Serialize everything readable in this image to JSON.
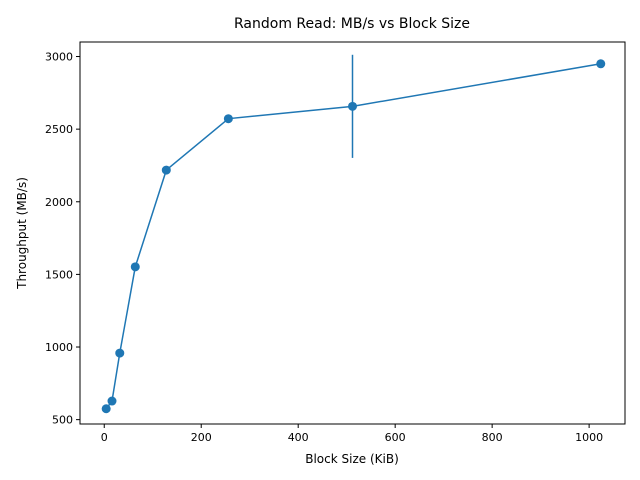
{
  "chart_data": {
    "type": "line",
    "title": "Random Read: MB/s vs Block Size",
    "xlabel": "Block Size (KiB)",
    "ylabel": "Throughput (MB/s)",
    "xlim": [
      -50,
      1074
    ],
    "ylim": [
      470,
      3100
    ],
    "x_ticks": [
      0,
      200,
      400,
      600,
      800,
      1000
    ],
    "y_ticks": [
      500,
      1000,
      1500,
      2000,
      2500,
      3000
    ],
    "grid": false,
    "color": "#1f77b4",
    "series": [
      {
        "x": [
          4,
          16,
          32,
          64,
          128,
          256,
          512,
          1024
        ],
        "y": [
          575,
          628,
          958,
          1552,
          2218,
          2572,
          2657,
          2950
        ],
        "yerr": [
          0,
          0,
          0,
          0,
          0,
          0,
          355,
          0
        ]
      }
    ]
  }
}
